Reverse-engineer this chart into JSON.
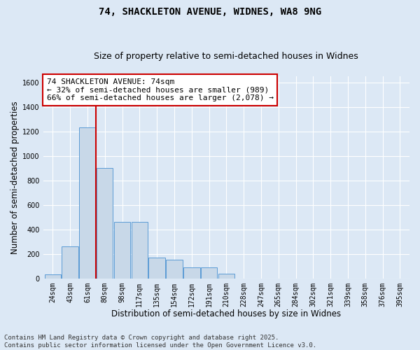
{
  "title_line1": "74, SHACKLETON AVENUE, WIDNES, WA8 9NG",
  "title_line2": "Size of property relative to semi-detached houses in Widnes",
  "xlabel": "Distribution of semi-detached houses by size in Widnes",
  "ylabel": "Number of semi-detached properties",
  "categories": [
    "24sqm",
    "43sqm",
    "61sqm",
    "80sqm",
    "98sqm",
    "117sqm",
    "135sqm",
    "154sqm",
    "172sqm",
    "191sqm",
    "210sqm",
    "228sqm",
    "247sqm",
    "265sqm",
    "284sqm",
    "302sqm",
    "321sqm",
    "339sqm",
    "358sqm",
    "376sqm",
    "395sqm"
  ],
  "values": [
    35,
    260,
    1230,
    900,
    460,
    460,
    170,
    150,
    90,
    90,
    40,
    0,
    0,
    0,
    0,
    0,
    0,
    0,
    0,
    0,
    0
  ],
  "bar_color": "#c8d8e8",
  "bar_edge_color": "#5b9bd5",
  "vline_color": "#cc0000",
  "vline_x_index": 2.5,
  "annotation_text": "74 SHACKLETON AVENUE: 74sqm\n← 32% of semi-detached houses are smaller (989)\n66% of semi-detached houses are larger (2,078) →",
  "annotation_box_color": "#ffffff",
  "annotation_box_edge": "#cc0000",
  "ylim": [
    0,
    1650
  ],
  "yticks": [
    0,
    200,
    400,
    600,
    800,
    1000,
    1200,
    1400,
    1600
  ],
  "footer_line1": "Contains HM Land Registry data © Crown copyright and database right 2025.",
  "footer_line2": "Contains public sector information licensed under the Open Government Licence v3.0.",
  "bg_color": "#dce8f5",
  "plot_bg_color": "#dce8f5",
  "grid_color": "#ffffff",
  "title_fontsize": 10,
  "subtitle_fontsize": 9,
  "axis_label_fontsize": 8.5,
  "tick_fontsize": 7,
  "annotation_fontsize": 8,
  "footer_fontsize": 6.5
}
